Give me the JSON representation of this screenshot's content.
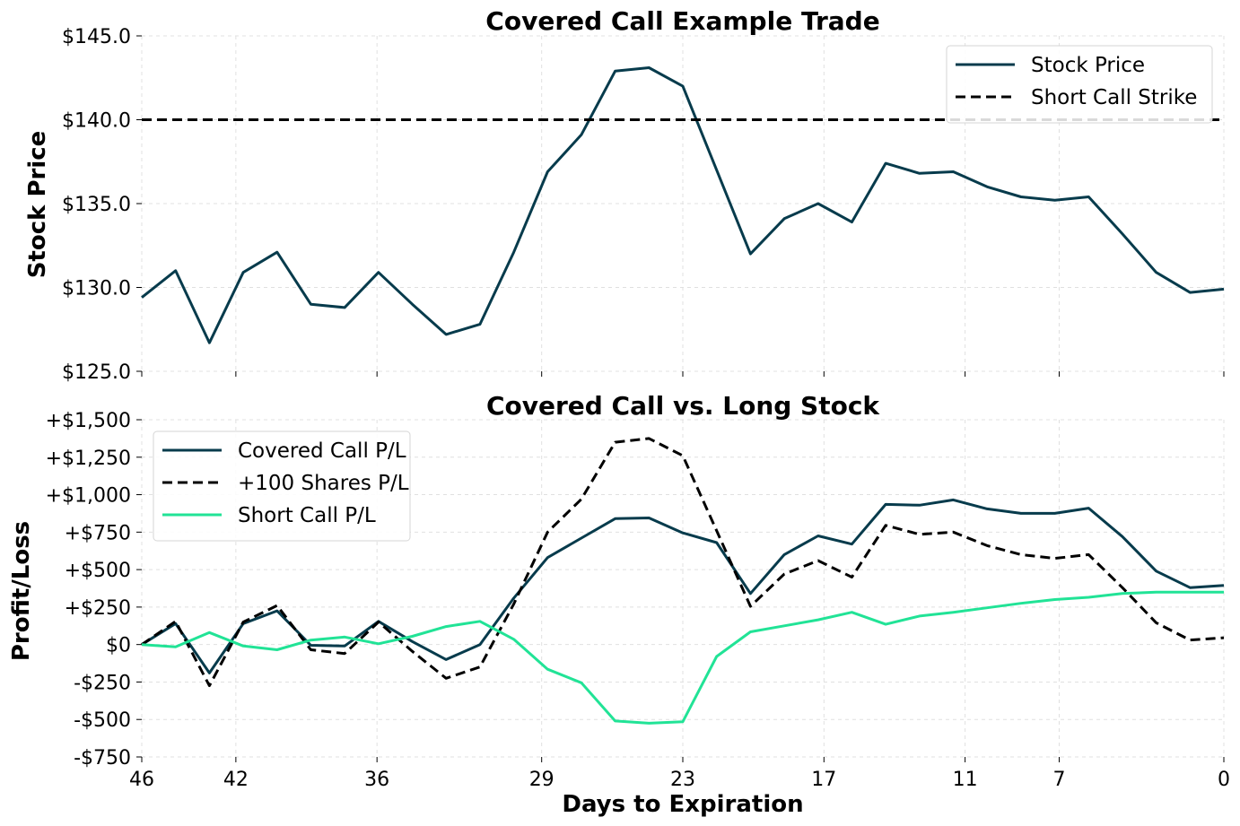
{
  "chart_data": [
    {
      "type": "line",
      "title": "Covered Call Example Trade",
      "xlabel": "",
      "ylabel": "Stock Price",
      "xlim": [
        46,
        0
      ],
      "ylim": [
        125,
        145
      ],
      "xticks": [
        46,
        42,
        36,
        29,
        23,
        17,
        11,
        7,
        0
      ],
      "yticks": [
        125,
        130,
        135,
        140,
        145
      ],
      "ytick_labels": [
        "$125.0",
        "$130.0",
        "$135.0",
        "$140.0",
        "$145.0"
      ],
      "grid": true,
      "legend_position": "upper-right",
      "series": [
        {
          "name": "Stock Price",
          "color": "#073b4c",
          "style": "solid",
          "values": [
            129.4,
            131.0,
            126.7,
            130.9,
            132.1,
            129.0,
            128.8,
            130.9,
            129.0,
            127.2,
            127.8,
            132.1,
            136.9,
            139.1,
            142.9,
            143.1,
            142.0,
            137.0,
            132.0,
            134.1,
            135.0,
            133.9,
            137.4,
            136.8,
            136.9,
            136.0,
            135.4,
            135.2,
            135.4,
            133.2,
            130.9,
            129.7,
            129.9
          ]
        },
        {
          "name": "Short Call Strike",
          "color": "#000000",
          "style": "dashed",
          "values": [
            140,
            140
          ]
        }
      ]
    },
    {
      "type": "line",
      "title": "Covered Call vs. Long Stock",
      "xlabel": "Days to Expiration",
      "ylabel": "Profit/Loss",
      "xlim": [
        46,
        0
      ],
      "ylim": [
        -750,
        1500
      ],
      "xticks": [
        46,
        42,
        36,
        29,
        23,
        17,
        11,
        7,
        0
      ],
      "xtick_labels": [
        "46",
        "42",
        "36",
        "29",
        "23",
        "17",
        "11",
        "7",
        "0"
      ],
      "yticks": [
        -750,
        -500,
        -250,
        0,
        250,
        500,
        750,
        1000,
        1250,
        1500
      ],
      "ytick_labels": [
        "-$750",
        "-$500",
        "-$250",
        "$0",
        "+$250",
        "+$500",
        "+$750",
        "+$1,000",
        "+$1,250",
        "+$1,500"
      ],
      "grid": true,
      "legend_position": "upper-left",
      "series": [
        {
          "name": "Covered Call P/L",
          "color": "#073b4c",
          "style": "solid",
          "values": [
            0,
            140,
            -190,
            140,
            225,
            -5,
            -10,
            155,
            20,
            -100,
            0,
            310,
            580,
            710,
            840,
            845,
            745,
            680,
            340,
            600,
            725,
            670,
            935,
            930,
            965,
            905,
            875,
            875,
            910,
            720,
            490,
            380,
            395
          ]
        },
        {
          "name": "+100 Shares P/L",
          "color": "#000000",
          "style": "dashed",
          "values": [
            0,
            155,
            -275,
            150,
            260,
            -35,
            -60,
            150,
            -45,
            -225,
            -150,
            270,
            750,
            970,
            1350,
            1375,
            1260,
            760,
            255,
            470,
            560,
            450,
            795,
            735,
            750,
            660,
            600,
            575,
            600,
            380,
            145,
            30,
            45
          ]
        },
        {
          "name": "Short Call P/L",
          "color": "#21e396",
          "style": "solid",
          "values": [
            0,
            -15,
            80,
            -10,
            -35,
            30,
            50,
            5,
            55,
            120,
            155,
            35,
            -165,
            -255,
            -510,
            -525,
            -515,
            -80,
            85,
            125,
            165,
            215,
            135,
            190,
            215,
            245,
            275,
            300,
            315,
            340,
            350,
            350,
            350
          ]
        }
      ]
    }
  ]
}
